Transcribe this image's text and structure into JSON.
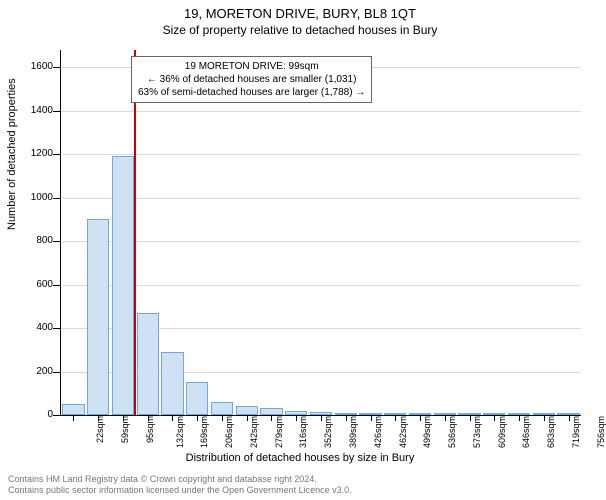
{
  "header": {
    "title": "19, MORETON DRIVE, BURY, BL8 1QT",
    "subtitle": "Size of property relative to detached houses in Bury"
  },
  "chart": {
    "type": "histogram",
    "y_axis_title": "Number of detached properties",
    "x_axis_title": "Distribution of detached houses by size in Bury",
    "background_color": "#ffffff",
    "grid_color": "#d9d9d9",
    "bar_fill": "#cfe2f3",
    "bar_border": "#6fa8dc",
    "marker_color": "#cc0000",
    "y_ticks": [
      0,
      200,
      400,
      600,
      800,
      1000,
      1200,
      1400,
      1600
    ],
    "ylim_max": 1680,
    "x_labels": [
      "22sqm",
      "59sqm",
      "95sqm",
      "132sqm",
      "169sqm",
      "206sqm",
      "242sqm",
      "279sqm",
      "316sqm",
      "352sqm",
      "389sqm",
      "426sqm",
      "462sqm",
      "499sqm",
      "536sqm",
      "573sqm",
      "609sqm",
      "646sqm",
      "683sqm",
      "719sqm",
      "756sqm"
    ],
    "values": [
      50,
      900,
      1190,
      470,
      290,
      150,
      60,
      40,
      30,
      20,
      15,
      5,
      5,
      3,
      2,
      2,
      2,
      1,
      1,
      1,
      0
    ],
    "marker_bin_index": 2,
    "callout": {
      "line1": "19 MORETON DRIVE: 99sqm",
      "line2": "← 36% of detached houses are smaller (1,031)",
      "line3": "63% of semi-detached houses are larger (1,788) →"
    }
  },
  "footer": {
    "line1": "Contains HM Land Registry data © Crown copyright and database right 2024.",
    "line2": "Contains public sector information licensed under the Open Government Licence v3.0."
  }
}
